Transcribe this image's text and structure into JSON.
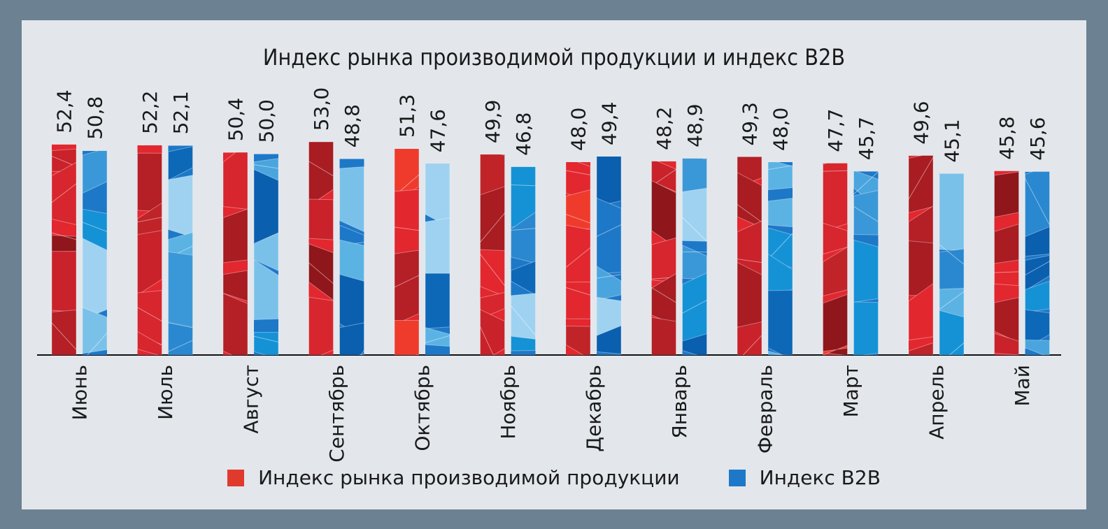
{
  "chart_data": {
    "type": "bar",
    "title": "Индекс рынка производимой продукции и индекс B2B",
    "categories": [
      "Июнь",
      "Июль",
      "Август",
      "Сентябрь",
      "Октябрь",
      "Ноябрь",
      "Декабрь",
      "Январь",
      "Февраль",
      "Март",
      "Апрель",
      "Май"
    ],
    "series": [
      {
        "name": "Индекс рынка производимой продукции",
        "values": [
          52.4,
          52.2,
          50.4,
          53.0,
          51.3,
          49.9,
          48.0,
          48.2,
          49.3,
          47.7,
          49.6,
          45.8
        ],
        "labels": [
          "52,4",
          "52,2",
          "50,4",
          "53,0",
          "51,3",
          "49,9",
          "48,0",
          "48,2",
          "49,3",
          "47,7",
          "49,6",
          "45,8"
        ],
        "color": "#e2272f"
      },
      {
        "name": "Индекс B2B",
        "values": [
          50.8,
          52.1,
          50.0,
          48.8,
          47.6,
          46.8,
          49.4,
          48.9,
          48.0,
          45.7,
          45.1,
          45.6
        ],
        "labels": [
          "50,8",
          "52,1",
          "50,0",
          "48,8",
          "47,6",
          "46,8",
          "49,4",
          "48,9",
          "48,0",
          "45,7",
          "45,1",
          "45,6"
        ],
        "color": "#1e78c8"
      }
    ],
    "legend_position": "bottom",
    "grid": false
  }
}
